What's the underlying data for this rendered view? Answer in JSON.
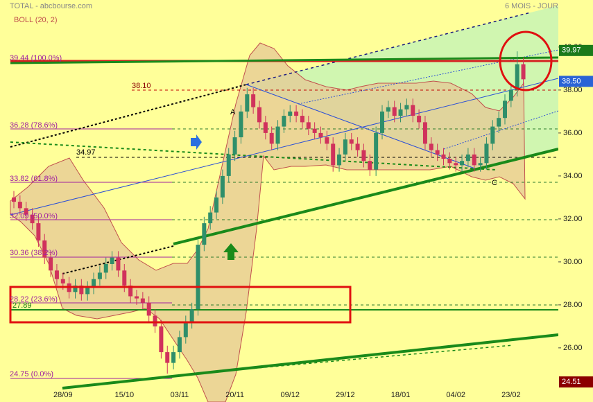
{
  "chart_data": {
    "type": "candlestick",
    "title": "TOTAL - abcbourse.com",
    "period": "6 MOIS - JOUR",
    "indicator": "BOLL (20, 2)",
    "categories": [
      null,
      null,
      null,
      null,
      null,
      null,
      null,
      null,
      "28/09",
      null,
      null,
      null,
      null,
      null,
      null,
      null,
      null,
      null,
      "15/10",
      null,
      null,
      null,
      null,
      null,
      null,
      null,
      null,
      "03/11",
      null,
      null,
      null,
      null,
      null,
      null,
      null,
      null,
      "20/11",
      null,
      null,
      null,
      null,
      null,
      null,
      null,
      null,
      "09/12",
      null,
      null,
      null,
      null,
      null,
      null,
      null,
      null,
      "29/12",
      null,
      null,
      null,
      null,
      null,
      null,
      null,
      null,
      "18/01",
      null,
      null,
      null,
      null,
      null,
      null,
      null,
      null,
      "04/02",
      null,
      null,
      null,
      null,
      null,
      null,
      null,
      null,
      "23/02",
      null,
      null
    ],
    "open": [
      33.0,
      32.8,
      32.5,
      32.2,
      31.8,
      31.0,
      30.2,
      29.6,
      29.2,
      29.0,
      28.6,
      28.9,
      28.5,
      28.8,
      29.2,
      29.5,
      29.9,
      30.2,
      29.6,
      28.9,
      28.4,
      28.3,
      28.1,
      27.5,
      27.0,
      25.8,
      25.3,
      25.8,
      26.5,
      27.2,
      27.8,
      30.8,
      31.8,
      32.3,
      33.0,
      34.0,
      35.0,
      35.8,
      37.0,
      37.8,
      37.2,
      36.5,
      36.0,
      35.5,
      36.3,
      36.8,
      37.0,
      36.8,
      36.5,
      36.2,
      36.0,
      35.8,
      35.5,
      34.5,
      35.0,
      35.7,
      35.5,
      35.2,
      34.7,
      34.3,
      36.0,
      37.0,
      37.2,
      36.8,
      37.1,
      37.3,
      36.8,
      36.5,
      35.5,
      35.2,
      35.0,
      34.8,
      34.6,
      34.5,
      34.7,
      35.0,
      34.5,
      34.6,
      35.5,
      36.3,
      36.7,
      37.5,
      38.0,
      39.2
    ],
    "high": [
      33.3,
      33.1,
      32.8,
      32.5,
      32.1,
      31.3,
      30.5,
      29.9,
      29.5,
      29.3,
      29.2,
      29.2,
      29.1,
      29.5,
      29.8,
      30.2,
      30.5,
      30.5,
      29.9,
      29.2,
      28.7,
      28.6,
      28.4,
      27.8,
      27.3,
      26.1,
      26.1,
      26.8,
      27.5,
      28.1,
      31.1,
      32.1,
      32.6,
      33.3,
      34.3,
      35.3,
      36.1,
      37.3,
      38.1,
      38.1,
      37.5,
      36.8,
      36.3,
      36.6,
      37.1,
      37.3,
      37.3,
      37.1,
      36.8,
      36.5,
      36.3,
      36.1,
      35.8,
      35.3,
      36.0,
      36.0,
      35.8,
      35.5,
      35.0,
      36.3,
      37.3,
      37.5,
      37.5,
      37.4,
      37.6,
      37.6,
      37.1,
      36.8,
      35.8,
      35.5,
      35.3,
      35.1,
      34.9,
      35.0,
      35.3,
      35.3,
      34.9,
      35.8,
      36.6,
      37.0,
      37.8,
      38.3,
      39.8,
      39.5
    ],
    "low": [
      32.5,
      32.2,
      31.9,
      31.5,
      30.7,
      29.9,
      29.3,
      28.9,
      28.7,
      28.3,
      28.3,
      28.2,
      28.2,
      28.5,
      28.9,
      29.2,
      29.6,
      29.3,
      28.6,
      28.1,
      28.0,
      27.8,
      27.2,
      26.7,
      25.5,
      24.8,
      25.0,
      25.5,
      26.2,
      26.9,
      27.5,
      30.5,
      31.5,
      32.0,
      32.7,
      33.7,
      34.7,
      35.5,
      36.7,
      36.9,
      36.2,
      35.7,
      35.2,
      35.2,
      36.0,
      36.5,
      36.5,
      36.2,
      35.9,
      35.7,
      35.5,
      35.2,
      34.2,
      34.2,
      34.7,
      35.2,
      34.9,
      34.4,
      34.0,
      34.0,
      35.7,
      36.7,
      36.5,
      36.5,
      36.8,
      36.5,
      36.2,
      35.2,
      34.9,
      34.7,
      34.5,
      34.3,
      34.2,
      34.2,
      34.4,
      34.2,
      34.2,
      34.3,
      35.2,
      36.0,
      36.4,
      37.2,
      37.7,
      38.2
    ],
    "close": [
      32.8,
      32.5,
      32.2,
      31.8,
      31.0,
      30.2,
      29.6,
      29.2,
      29.0,
      28.6,
      28.9,
      28.5,
      28.8,
      29.2,
      29.5,
      29.9,
      30.2,
      29.6,
      28.9,
      28.4,
      28.3,
      28.1,
      27.5,
      27.0,
      25.8,
      25.3,
      25.8,
      26.5,
      27.2,
      27.8,
      30.8,
      31.8,
      32.3,
      33.0,
      34.0,
      35.0,
      35.8,
      37.0,
      37.8,
      37.2,
      36.5,
      36.0,
      35.5,
      36.3,
      36.8,
      37.0,
      36.8,
      36.5,
      36.2,
      36.0,
      35.8,
      35.5,
      34.5,
      35.0,
      35.7,
      35.5,
      35.2,
      34.7,
      34.3,
      36.0,
      37.0,
      37.2,
      36.8,
      37.1,
      37.3,
      36.8,
      36.5,
      35.5,
      35.2,
      35.0,
      34.8,
      34.6,
      34.5,
      34.7,
      35.0,
      34.5,
      34.6,
      35.5,
      36.3,
      36.7,
      37.5,
      38.0,
      39.2,
      38.5
    ],
    "up_color": "#2f8f6a",
    "down_color": "#d0325c",
    "ylim": [
      23.48,
      42.19
    ],
    "yticks": [
      {
        "value": 26,
        "label": "26.00"
      },
      {
        "value": 28,
        "label": "28.00"
      },
      {
        "value": 30,
        "label": "30.00"
      },
      {
        "value": 32,
        "label": "32.00"
      },
      {
        "value": 34,
        "label": "34.00"
      },
      {
        "value": 36,
        "label": "36.00"
      },
      {
        "value": 38,
        "label": "38.00"
      },
      {
        "value": 40,
        "label": "40.00"
      }
    ],
    "price_labels": [
      {
        "value": 39.97,
        "label": "39.97",
        "color": "#1a7a1a"
      },
      {
        "value": 38.5,
        "label": "38.50",
        "color": "#2b63d6"
      },
      {
        "value": 24.51,
        "label": "24.51",
        "color": "#8b0000"
      }
    ],
    "annotations": [
      "39.44 (100.0%)",
      "38.10",
      "36.28 (78.6%)",
      "34.97",
      "33.82 (61.8%)",
      "32.09 (50.0%)",
      "30.36 (38.2%)",
      "28.22 (23.6%)",
      "27.89",
      "24.75 (0.0%)",
      "A",
      "C"
    ]
  }
}
